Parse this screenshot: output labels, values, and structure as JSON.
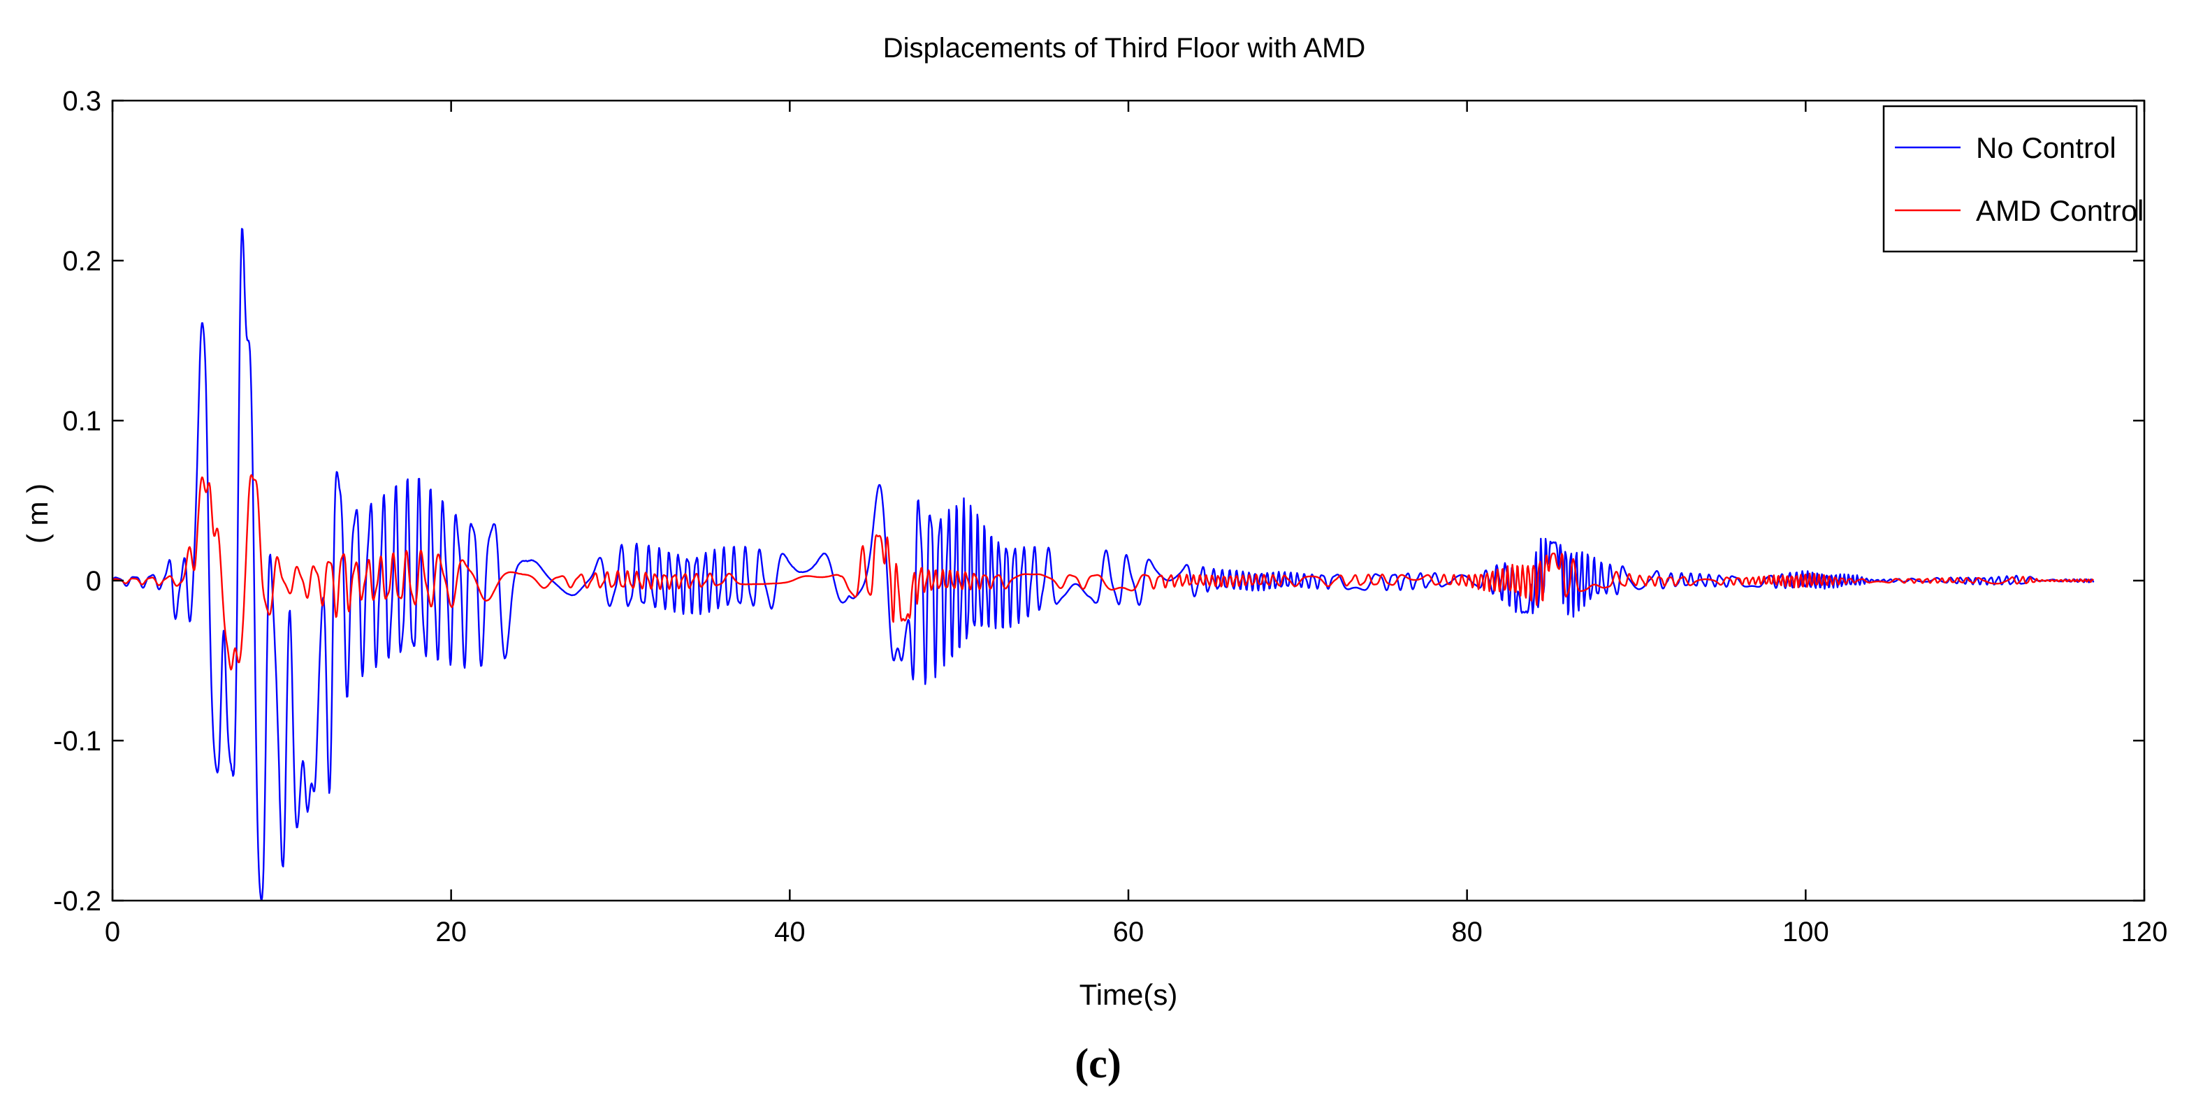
{
  "caption": "(c)",
  "chart_data": {
    "type": "line",
    "title": "Displacements of Third Floor with AMD",
    "xlabel": "Time(s)",
    "ylabel": "( m )",
    "xlim": [
      0,
      120
    ],
    "ylim": [
      -0.2,
      0.3
    ],
    "xticks": [
      0,
      20,
      40,
      60,
      80,
      100,
      120
    ],
    "xtick_labels": [
      "0",
      "20",
      "40",
      "60",
      "80",
      "100",
      "120"
    ],
    "yticks": [
      -0.2,
      -0.1,
      0,
      0.1,
      0.2,
      0.3
    ],
    "ytick_labels": [
      "-0.2",
      "-0.1",
      "0",
      "0.1",
      "0.2",
      "0.3"
    ],
    "grid": false,
    "legend_position": "top-right",
    "x_end": 117,
    "series": [
      {
        "name": "No Control",
        "color": "#0000ff",
        "envelope": [
          [
            0,
            0.002
          ],
          [
            3,
            0.005
          ],
          [
            4.5,
            0.04
          ],
          [
            5.5,
            0.175
          ],
          [
            6.3,
            0.12
          ],
          [
            7.5,
            0.17
          ],
          [
            8.3,
            0.212
          ],
          [
            9,
            0.2
          ],
          [
            10,
            0.163
          ],
          [
            11,
            0.15
          ],
          [
            12,
            0.13
          ],
          [
            13,
            0.097
          ],
          [
            14,
            0.05
          ],
          [
            16,
            0.045
          ],
          [
            18,
            0.052
          ],
          [
            20,
            0.045
          ],
          [
            22,
            0.043
          ],
          [
            23.5,
            0.04
          ],
          [
            24.5,
            0.015
          ],
          [
            26,
            0.006
          ],
          [
            28,
            0.01
          ],
          [
            30,
            0.018
          ],
          [
            35,
            0.017
          ],
          [
            39,
            0.016
          ],
          [
            42,
            0.016
          ],
          [
            43.5,
            0.012
          ],
          [
            44,
            0.03
          ],
          [
            45.3,
            0.06
          ],
          [
            46.5,
            0.05
          ],
          [
            47.5,
            0.055
          ],
          [
            49,
            0.045
          ],
          [
            50.5,
            0.04
          ],
          [
            52,
            0.025
          ],
          [
            55,
            0.017
          ],
          [
            58,
            0.016
          ],
          [
            62,
            0.012
          ],
          [
            65,
            0.006
          ],
          [
            70,
            0.004
          ],
          [
            75,
            0.005
          ],
          [
            79,
            0.004
          ],
          [
            81,
            0.005
          ],
          [
            83.3,
            0.018
          ],
          [
            85,
            0.024
          ],
          [
            86.5,
            0.018
          ],
          [
            88,
            0.009
          ],
          [
            90,
            0.008
          ],
          [
            92,
            0.004
          ],
          [
            97,
            0.003
          ],
          [
            100,
            0.005
          ],
          [
            103,
            0.003
          ],
          [
            104,
            0.0005
          ],
          [
            110,
            0.002
          ],
          [
            113,
            0.0025
          ],
          [
            114,
            0.0004
          ],
          [
            117,
            0.001
          ]
        ],
        "events": [
          [
            4.8,
            -0.04
          ],
          [
            5.4,
            0.175
          ],
          [
            6.2,
            -0.12
          ],
          [
            8.2,
            0.212
          ],
          [
            8.8,
            -0.2
          ],
          [
            10.9,
            -0.155
          ],
          [
            11.9,
            -0.132
          ],
          [
            45.3,
            0.06
          ],
          [
            46.6,
            -0.05
          ],
          [
            83.4,
            -0.02
          ],
          [
            85.1,
            0.024
          ]
        ],
        "decay": 0.35
      },
      {
        "name": "AMD Control",
        "color": "#ff0000",
        "envelope": [
          [
            0,
            0.001
          ],
          [
            4,
            0.003
          ],
          [
            5,
            0.03
          ],
          [
            5.3,
            0.065
          ],
          [
            6.5,
            0.06
          ],
          [
            8,
            0.066
          ],
          [
            9,
            0.03
          ],
          [
            10,
            0.007
          ],
          [
            12,
            0.01
          ],
          [
            13.5,
            0.02
          ],
          [
            14.5,
            0.01
          ],
          [
            18,
            0.016
          ],
          [
            21,
            0.013
          ],
          [
            24,
            0.006
          ],
          [
            26,
            0.003
          ],
          [
            30,
            0.005
          ],
          [
            35,
            0.004
          ],
          [
            40,
            0.002
          ],
          [
            43,
            0.003
          ],
          [
            45.2,
            0.027
          ],
          [
            46.5,
            0.022
          ],
          [
            48,
            0.006
          ],
          [
            52,
            0.004
          ],
          [
            56,
            0.004
          ],
          [
            60,
            0.005
          ],
          [
            64,
            0.003
          ],
          [
            70,
            0.003
          ],
          [
            80,
            0.003
          ],
          [
            83.3,
            0.009
          ],
          [
            85,
            0.017
          ],
          [
            87,
            0.007
          ],
          [
            90,
            0.003
          ],
          [
            97,
            0.002
          ],
          [
            100,
            0.004
          ],
          [
            103,
            0.001
          ],
          [
            110,
            0.0015
          ],
          [
            113,
            0.002
          ],
          [
            114,
            0.0003
          ],
          [
            117,
            0.0008
          ]
        ],
        "events": [
          [
            5.3,
            0.065
          ],
          [
            6.2,
            0.035
          ],
          [
            7,
            -0.055
          ],
          [
            7.6,
            -0.06
          ],
          [
            8.2,
            0.066
          ],
          [
            45.3,
            0.028
          ],
          [
            46.8,
            -0.025
          ],
          [
            85.1,
            0.017
          ]
        ],
        "decay": 0.3
      }
    ]
  }
}
